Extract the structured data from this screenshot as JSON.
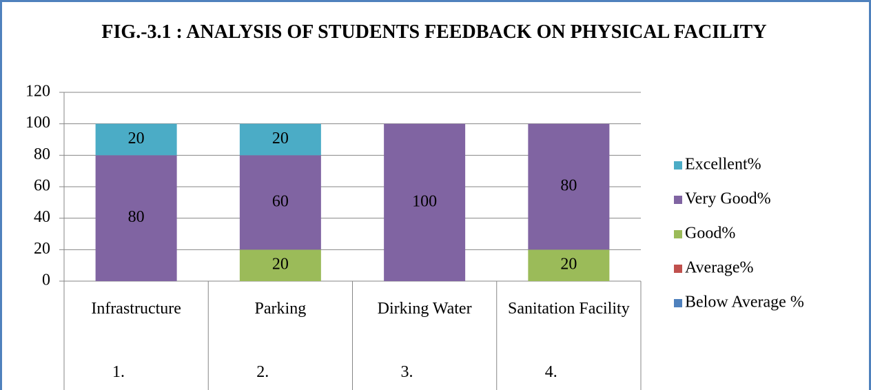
{
  "chart_data": {
    "type": "stacked_bar",
    "title": "FIG.-3.1 : ANALYSIS OF STUDENTS FEEDBACK ON PHYSICAL FACILITY",
    "categories": [
      "Infrastructure",
      "Parking",
      "Dirking Water",
      "Sanitation Facility"
    ],
    "category_groups": [
      "1.",
      "2.",
      "3.",
      "4."
    ],
    "series": [
      {
        "name": "Below Average %",
        "color": "#4f81bd",
        "values": [
          0,
          0,
          0,
          0
        ]
      },
      {
        "name": "Average%",
        "color": "#c0504d",
        "values": [
          0,
          0,
          0,
          0
        ]
      },
      {
        "name": "Good%",
        "color": "#9bbb59",
        "values": [
          0,
          20,
          0,
          20
        ]
      },
      {
        "name": "Very Good%",
        "color": "#8064a2",
        "values": [
          80,
          60,
          100,
          80
        ]
      },
      {
        "name": "Excellent%",
        "color": "#4bacc6",
        "values": [
          20,
          20,
          0,
          0
        ]
      }
    ],
    "ylim": [
      0,
      120
    ],
    "yticks": [
      0,
      20,
      40,
      60,
      80,
      100,
      120
    ],
    "grid": true,
    "legend": "right"
  }
}
